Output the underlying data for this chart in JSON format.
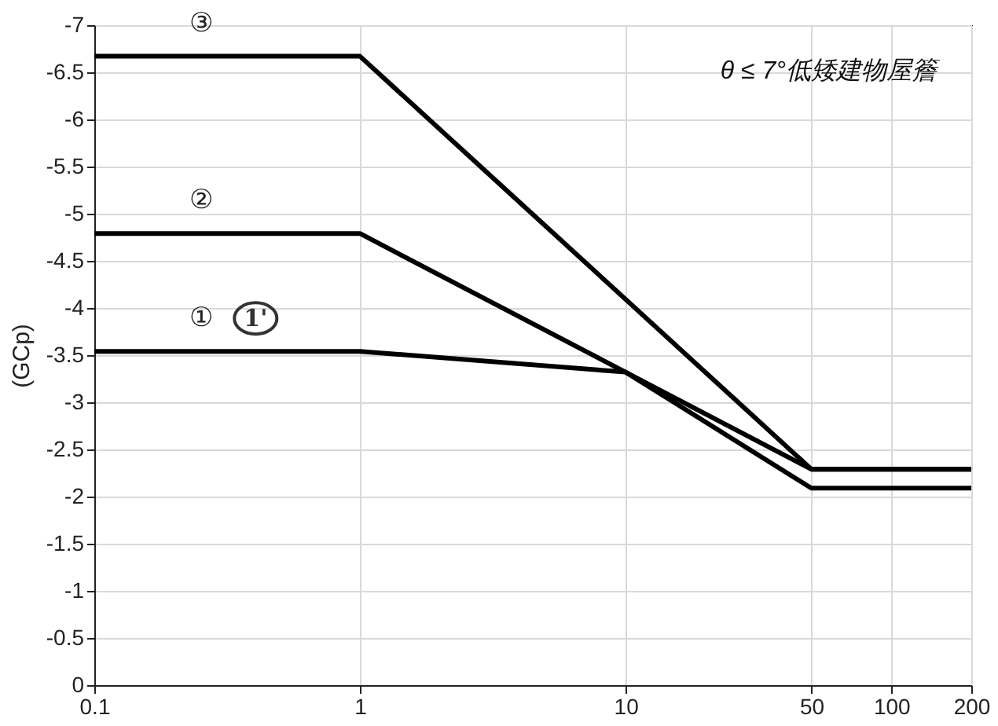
{
  "chart_data": {
    "type": "line",
    "ylabel": "(GCp)",
    "x": [
      0.1,
      1,
      10,
      50,
      200
    ],
    "series": [
      {
        "name": "①",
        "color": "#000000",
        "values": [
          -3.54,
          -3.54,
          -3.32,
          -2.09,
          -2.09
        ]
      },
      {
        "name": "②",
        "color": "#000000",
        "x": [
          0.1,
          1,
          50,
          200
        ],
        "values": [
          -4.79,
          -4.79,
          -2.29,
          -2.29
        ]
      },
      {
        "name": "③",
        "color": "#000000",
        "x": [
          0.1,
          1,
          50,
          200
        ],
        "values": [
          -6.67,
          -6.67,
          -2.29,
          -2.29
        ]
      }
    ],
    "annotations": [
      "1'",
      "θ ≤ 7°低矮建物屋簷"
    ],
    "log": "x",
    "xlim": [
      0.1,
      200
    ],
    "xticks": [
      0.1,
      1,
      10,
      50,
      100,
      200
    ],
    "ylim": [
      0,
      -7
    ],
    "yticks": [
      0,
      -0.5,
      -1,
      -1.5,
      -2,
      -2.5,
      -3,
      -3.5,
      -4,
      -4.5,
      -5,
      -5.5,
      -6,
      -6.5,
      -7
    ],
    "grid": true,
    "marker": "none",
    "line_style": "solid"
  }
}
